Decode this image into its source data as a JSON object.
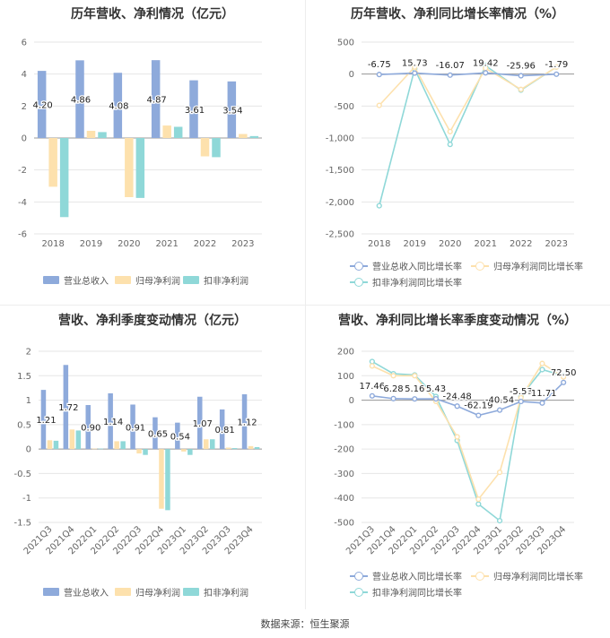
{
  "source_text": "数据来源：恒生聚源",
  "chart_data": [
    {
      "id": "annual-bars",
      "type": "bar",
      "title": "历年营收、净利情况（亿元）",
      "categories": [
        "2018",
        "2019",
        "2020",
        "2021",
        "2022",
        "2023"
      ],
      "ylim": [
        -6,
        6
      ],
      "yticks": [
        6,
        4,
        2,
        0,
        -2,
        -4,
        -6
      ],
      "grid": true,
      "legend_position": "bottom",
      "series": [
        {
          "name": "营业总收入",
          "color": "#8eaadb",
          "values": [
            4.2,
            4.86,
            4.08,
            4.87,
            3.61,
            3.54
          ]
        },
        {
          "name": "归母净利润",
          "color": "#fde1ad",
          "values": [
            -3.05,
            0.45,
            -3.7,
            0.78,
            -1.15,
            0.25
          ]
        },
        {
          "name": "扣非净利润",
          "color": "#8fd8d8",
          "values": [
            -4.95,
            0.37,
            -3.75,
            0.7,
            -1.2,
            0.12
          ]
        }
      ],
      "data_labels": [
        "4.20",
        "4.86",
        "4.08",
        "4.87",
        "3.61",
        "3.54"
      ]
    },
    {
      "id": "annual-growth",
      "type": "line",
      "title": "历年营收、净利同比增长率情况（%）",
      "categories": [
        "2018",
        "2019",
        "2020",
        "2021",
        "2022",
        "2023"
      ],
      "ylim": [
        -2500,
        500
      ],
      "yticks": [
        500,
        0,
        -500,
        -1000,
        -1500,
        -2000,
        -2500
      ],
      "grid": true,
      "legend_position": "bottom",
      "series": [
        {
          "name": "营业总收入同比增长率",
          "color": "#8eaadb",
          "values": [
            -6.75,
            15.73,
            -16.07,
            19.42,
            -25.96,
            -1.79
          ]
        },
        {
          "name": "归母净利润同比增长率",
          "color": "#fde1ad",
          "values": [
            -490,
            110,
            -900,
            90,
            -240,
            110
          ]
        },
        {
          "name": "扣非净利润同比增长率",
          "color": "#8fd8d8",
          "values": [
            -2060,
            80,
            -1100,
            130,
            -250,
            110
          ]
        }
      ],
      "data_labels": [
        "-6.75",
        "15.73",
        "-16.07",
        "19.42",
        "-25.96",
        "-1.79"
      ]
    },
    {
      "id": "quarterly-bars",
      "type": "bar",
      "title": "营收、净利季度变动情况（亿元）",
      "categories": [
        "2021Q3",
        "2021Q4",
        "2022Q1",
        "2022Q2",
        "2022Q3",
        "2022Q4",
        "2023Q1",
        "2023Q2",
        "2023Q3",
        "2023Q4"
      ],
      "ylim": [
        -1.5,
        2
      ],
      "yticks": [
        2,
        1.5,
        1,
        0.5,
        0,
        -0.5,
        -1,
        -1.5
      ],
      "grid": true,
      "legend_position": "bottom",
      "series": [
        {
          "name": "营业总收入",
          "color": "#8eaadb",
          "values": [
            1.21,
            1.72,
            0.9,
            1.14,
            0.91,
            0.65,
            0.54,
            1.07,
            0.81,
            1.12
          ]
        },
        {
          "name": "归母净利润",
          "color": "#fde1ad",
          "values": [
            0.18,
            0.4,
            0.01,
            0.16,
            -0.09,
            -1.22,
            -0.05,
            0.2,
            0.03,
            0.06
          ]
        },
        {
          "name": "扣非净利润",
          "color": "#8fd8d8",
          "values": [
            0.17,
            0.38,
            0.01,
            0.16,
            -0.12,
            -1.25,
            -0.12,
            0.2,
            0.02,
            0.04
          ]
        }
      ],
      "data_labels": [
        "1.21",
        "1.72",
        "0.90",
        "1.14",
        "0.91",
        "0.65",
        "0.54",
        "1.07",
        "0.81",
        "1.12"
      ]
    },
    {
      "id": "quarterly-growth",
      "type": "line",
      "title": "营收、净利同比增长率季度变动情况（%）",
      "categories": [
        "2021Q3",
        "2021Q4",
        "2022Q1",
        "2022Q2",
        "2022Q3",
        "2022Q4",
        "2023Q1",
        "2023Q2",
        "2023Q3",
        "2023Q4"
      ],
      "ylim": [
        -500,
        200
      ],
      "yticks": [
        200,
        100,
        0,
        -100,
        -200,
        -300,
        -400,
        -500
      ],
      "grid": true,
      "legend_position": "bottom",
      "series": [
        {
          "name": "营业总收入同比增长率",
          "color": "#8eaadb",
          "values": [
            17.46,
            6.28,
            5.16,
            5.43,
            -24.48,
            -62.19,
            -40.54,
            -5.53,
            -11.71,
            72.5
          ]
        },
        {
          "name": "归母净利润同比增长率",
          "color": "#fde1ad",
          "values": [
            140,
            100,
            100,
            -5,
            -150,
            -405,
            -295,
            10,
            150,
            95
          ]
        },
        {
          "name": "扣非净利润同比增长率",
          "color": "#8fd8d8",
          "values": [
            158,
            108,
            103,
            15,
            -165,
            -425,
            -493,
            15,
            125,
            100
          ]
        }
      ],
      "data_labels": [
        "17.46",
        "6.28",
        "5.16",
        "5.43",
        "-24.48",
        "-62.19",
        "-40.54",
        "-5.53",
        "-11.71",
        "72.50"
      ]
    }
  ]
}
